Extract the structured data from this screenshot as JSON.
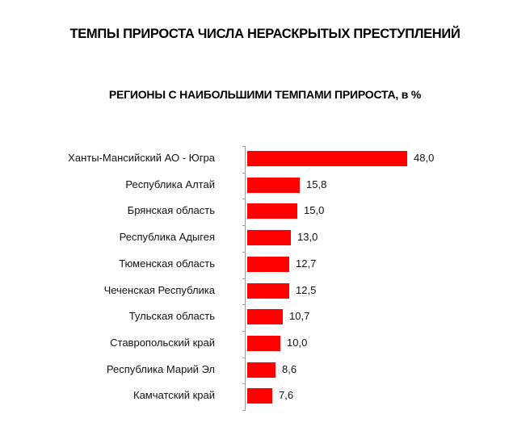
{
  "title": "ТЕМПЫ ПРИРОСТА ЧИСЛА НЕРАСКРЫТЫХ ПРЕСТУПЛЕНИЙ",
  "subtitle": "РЕГИОНЫ С НАИБОЛЬШИМИ ТЕМПАМИ ПРИРОСТА, в %",
  "bar_color": "#ff0000",
  "chart_data": {
    "type": "bar",
    "orientation": "horizontal",
    "title": "ТЕМПЫ ПРИРОСТА ЧИСЛА НЕРАСКРЫТЫХ ПРЕСТУПЛЕНИЙ",
    "subtitle": "РЕГИОНЫ С НАИБОЛЬШИМИ ТЕМПАМИ ПРИРОСТА, в %",
    "xlabel": "",
    "ylabel": "",
    "grid": false,
    "legend": null,
    "categories": [
      "Ханты-Мансийский АО - Югра",
      "Республика Алтай",
      "Брянская область",
      "Республика Адыгея",
      "Тюменская область",
      "Чеченская Республика",
      "Тульская область",
      "Ставропольский край",
      "Республика Марий Эл",
      "Камчатский край"
    ],
    "values": [
      48.0,
      15.8,
      15.0,
      13.0,
      12.7,
      12.5,
      10.7,
      10.0,
      8.6,
      7.6
    ],
    "value_labels": [
      "48,0",
      "15,8",
      "15,0",
      "13,0",
      "12,7",
      "12,5",
      "10,7",
      "10,0",
      "8,6",
      "7,6"
    ]
  }
}
